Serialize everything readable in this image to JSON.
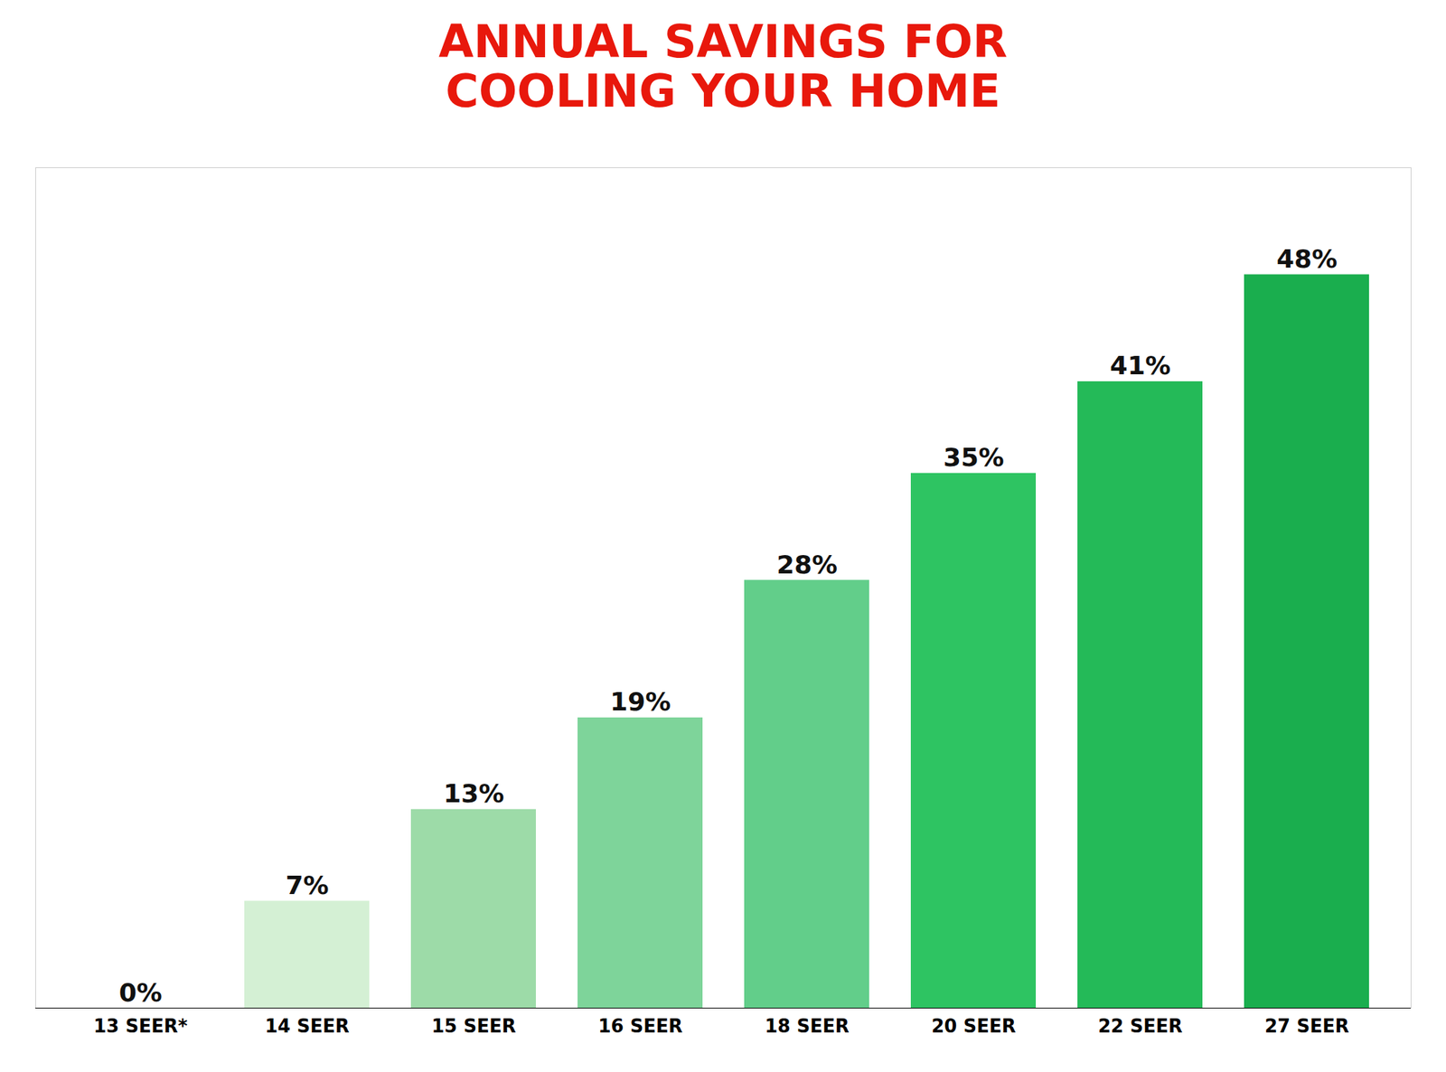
{
  "chart_data": {
    "type": "bar",
    "title": "ANNUAL SAVINGS FOR\nCOOLING YOUR HOME",
    "categories": [
      "13 SEER*",
      "14 SEER",
      "15 SEER",
      "16 SEER",
      "18 SEER",
      "20 SEER",
      "22 SEER",
      "27 SEER"
    ],
    "values": [
      0,
      7,
      13,
      19,
      28,
      35,
      41,
      48
    ],
    "value_labels": [
      "0%",
      "7%",
      "13%",
      "19%",
      "28%",
      "35%",
      "41%",
      "48%"
    ],
    "colors": [
      "#C5C0B5",
      "#D4F0D4",
      "#9DDBA8",
      "#7ED49A",
      "#62CE8A",
      "#2EC462",
      "#24BA58",
      "#1AAE4E"
    ],
    "ylim": [
      0,
      55
    ],
    "grid": false,
    "data_labels": true,
    "tick_labels": "x"
  }
}
